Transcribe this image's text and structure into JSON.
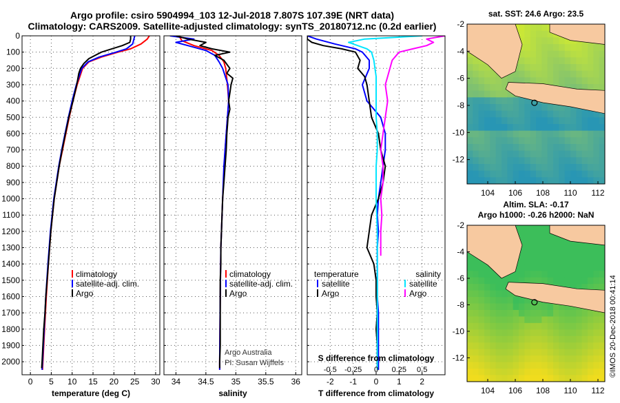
{
  "title_line1": "Argo profile: csiro 5904994_103 12-Jul-2018 7.807S 107.39E (NRT data)",
  "title_line2": "Climatology: CARS2009. Satellite-adjusted climatology: synTS_20180712.nc (0.2d earlier)",
  "credit": "©IMOS 20-Dec-2018 00:41:14",
  "colors": {
    "argo": "#000000",
    "clim": "#ff0000",
    "sat": "#0000ff",
    "sat_sal": "#00e5ff",
    "argo_sal": "#ff00ff",
    "land": "#f7c9a0"
  },
  "chart_data": [
    {
      "type": "line",
      "xlabel": "temperature (deg C)",
      "ylabel": "",
      "xlim": [
        -2,
        31
      ],
      "ylim": [
        2080,
        0
      ],
      "x_ticks": [
        0,
        5,
        10,
        15,
        20,
        25,
        30
      ],
      "y_ticks": [
        0,
        100,
        200,
        300,
        400,
        500,
        600,
        700,
        800,
        900,
        1000,
        1100,
        1200,
        1300,
        1400,
        1500,
        1600,
        1700,
        1800,
        1900,
        2000
      ],
      "legend": {
        "position": "bottom-center",
        "labels": [
          "climatology",
          "satellite-adj. clim.",
          "Argo"
        ]
      },
      "series": [
        {
          "name": "climatology",
          "color": "#ff0000",
          "depth": [
            0,
            20,
            50,
            80,
            100,
            130,
            160,
            200,
            300,
            400,
            500,
            600,
            700,
            800,
            900,
            1000,
            1200,
            1400,
            1600,
            1800,
            2000,
            2050
          ],
          "values": [
            28.5,
            28.0,
            26.5,
            24.0,
            21.0,
            17.0,
            14.0,
            12.5,
            11.2,
            10.2,
            9.3,
            8.5,
            7.7,
            6.9,
            6.3,
            5.7,
            4.9,
            4.3,
            3.8,
            3.4,
            3.0,
            2.9
          ]
        },
        {
          "name": "satellite-adj. clim.",
          "color": "#0000ff",
          "depth": [
            0,
            20,
            50,
            80,
            100,
            130,
            160,
            200,
            300,
            400,
            500,
            600,
            700,
            800,
            900,
            1000,
            1200,
            1400,
            1600,
            1800,
            2000,
            2050
          ],
          "values": [
            25.0,
            24.8,
            24.5,
            23.0,
            20.5,
            16.5,
            13.8,
            12.3,
            11.0,
            10.0,
            9.1,
            8.3,
            7.5,
            6.8,
            6.2,
            5.6,
            4.8,
            4.2,
            3.7,
            3.3,
            2.9,
            2.8
          ]
        },
        {
          "name": "Argo",
          "color": "#000000",
          "depth": [
            0,
            20,
            40,
            60,
            80,
            100,
            120,
            140,
            170,
            200,
            230,
            300,
            400,
            500,
            600,
            700,
            800,
            900,
            1000,
            1100,
            1200,
            1300,
            1400,
            1500,
            1600,
            1700,
            1800,
            1900,
            2000,
            2040
          ],
          "values": [
            24.0,
            24.0,
            23.8,
            22.0,
            19.5,
            17.0,
            15.5,
            14.0,
            12.8,
            12.0,
            11.6,
            11.1,
            10.2,
            9.2,
            8.4,
            7.6,
            6.9,
            6.3,
            5.7,
            5.3,
            4.9,
            4.6,
            4.3,
            4.0,
            3.7,
            3.5,
            3.2,
            3.0,
            2.8,
            2.7
          ]
        }
      ]
    },
    {
      "type": "line",
      "xlabel": "salinity",
      "ylabel": "",
      "xlim": [
        33.8,
        36.1
      ],
      "ylim": [
        2080,
        0
      ],
      "x_ticks": [
        34,
        34.5,
        35,
        35.5,
        36
      ],
      "legend": {
        "position": "bottom-right",
        "labels": [
          "climatology",
          "satellite-adj. clim.",
          "Argo"
        ]
      },
      "annotation": [
        "Argo Australia",
        "PI: Susan Wijffels"
      ],
      "series": [
        {
          "name": "climatology",
          "color": "#ff0000",
          "depth": [
            0,
            30,
            60,
            90,
            120,
            160,
            200,
            300,
            400,
            500,
            700,
            1000,
            1300,
            1600,
            2000,
            2050
          ],
          "values": [
            34.05,
            34.1,
            34.3,
            34.6,
            34.72,
            34.8,
            34.83,
            34.86,
            34.88,
            34.86,
            34.82,
            34.78,
            34.75,
            34.74,
            34.73,
            34.73
          ]
        },
        {
          "name": "satellite-adj. clim.",
          "color": "#0000ff",
          "depth": [
            0,
            20,
            40,
            60,
            90,
            120,
            160,
            200,
            300,
            400,
            500,
            600,
            700,
            800,
            1000,
            1300,
            1600,
            2000,
            2050
          ],
          "values": [
            33.9,
            34.3,
            34.0,
            34.2,
            34.5,
            34.65,
            34.72,
            34.78,
            34.87,
            34.88,
            34.86,
            34.84,
            34.82,
            34.8,
            34.78,
            34.75,
            34.74,
            34.73,
            34.73
          ]
        },
        {
          "name": "Argo",
          "color": "#000000",
          "depth": [
            0,
            20,
            40,
            60,
            80,
            100,
            120,
            150,
            200,
            230,
            260,
            300,
            350,
            400,
            450,
            500,
            550,
            600,
            700,
            800,
            900,
            1000,
            1100,
            1200,
            1300,
            1400,
            1500,
            1600,
            1700,
            1800,
            1900,
            2000,
            2040
          ],
          "values": [
            34.0,
            34.2,
            34.5,
            34.4,
            34.6,
            34.9,
            34.65,
            34.8,
            34.9,
            34.85,
            34.95,
            34.92,
            34.9,
            34.88,
            34.9,
            34.87,
            34.86,
            34.85,
            34.84,
            34.82,
            34.8,
            34.78,
            34.77,
            34.76,
            34.75,
            34.75,
            34.74,
            34.74,
            34.74,
            34.74,
            34.74,
            34.73,
            34.73
          ]
        }
      ]
    },
    {
      "type": "line",
      "xlabel": "T difference from climatology",
      "xlabel2": "S difference from climatology",
      "xlim": [
        -3,
        3
      ],
      "ylim": [
        2080,
        0
      ],
      "x_ticks": [
        -2,
        -1,
        0,
        1,
        2
      ],
      "x2_ticks": [
        -0.5,
        -0.25,
        0,
        0.25,
        0.5
      ],
      "x2_tick_labels": [
        "-0.5",
        "-0.25",
        "0",
        "0.25",
        "0.5"
      ],
      "legend": {
        "position": "bottom",
        "groups": [
          {
            "title": "temperature",
            "labels": [
              "satellite",
              "Argo"
            ]
          },
          {
            "title": "salinity",
            "labels": [
              "satellite",
              "Argo"
            ]
          }
        ]
      },
      "series": [
        {
          "name": "T satellite",
          "color": "#0000ff",
          "depth": [
            0,
            20,
            50,
            80,
            100,
            150,
            200,
            300,
            400,
            500,
            600,
            700,
            800,
            900,
            1000,
            1100,
            1200,
            1300,
            1400,
            1500,
            1600,
            1700,
            1800,
            1900,
            2000,
            2050
          ],
          "values": [
            -3.0,
            -2.6,
            -1.8,
            -0.9,
            -0.6,
            -0.3,
            -0.3,
            -0.6,
            -0.4,
            0.2,
            0.4,
            0.4,
            0.3,
            0.2,
            0.1,
            0.05,
            0.1,
            0.05,
            0.05,
            0.05,
            0.05,
            0.1,
            0.1,
            0.1,
            0.1,
            0.1
          ]
        },
        {
          "name": "T Argo",
          "color": "#000000",
          "depth": [
            0,
            20,
            40,
            60,
            80,
            100,
            150,
            200,
            250,
            300,
            400,
            500,
            600,
            700,
            800,
            900,
            1000,
            1100,
            1200,
            1300,
            1400,
            1500,
            1600,
            1700,
            1800,
            1900,
            2000,
            2040
          ],
          "values": [
            -3.0,
            -3.0,
            -2.8,
            -2.3,
            -1.5,
            -0.9,
            -0.7,
            -0.8,
            -0.5,
            -0.4,
            -0.3,
            -0.2,
            0.1,
            0.2,
            0.4,
            0.3,
            0.1,
            -0.2,
            -0.3,
            -0.4,
            -0.1,
            0.0,
            0.0,
            0.05,
            0.0,
            0.05,
            0.05,
            0.05
          ]
        },
        {
          "name": "S satellite",
          "color": "#00e5ff",
          "depth": [
            0,
            20,
            40,
            60,
            80,
            100,
            150,
            200,
            250,
            300,
            400,
            500,
            600,
            700,
            800,
            900,
            1000,
            1200,
            1400,
            1600,
            1800,
            2000,
            2050
          ],
          "values": [
            2.0,
            -0.5,
            -1.2,
            -0.8,
            -0.4,
            -0.2,
            -0.1,
            -0.05,
            0.0,
            0.0,
            0.0,
            0.0,
            0.05,
            0.05,
            0.0,
            0.0,
            0.0,
            0.05,
            0.05,
            0.05,
            0.05,
            0.05,
            0.05
          ]
        },
        {
          "name": "S Argo",
          "color": "#ff00ff",
          "depth": [
            0,
            20,
            40,
            60,
            80,
            100,
            150,
            200,
            250,
            300,
            400,
            500,
            600,
            700,
            800,
            900,
            1000,
            1100,
            1200,
            1300,
            1350
          ],
          "values": [
            3.0,
            2.2,
            2.5,
            2.2,
            1.6,
            1.0,
            0.7,
            0.6,
            0.5,
            0.4,
            0.5,
            0.4,
            0.3,
            0.2,
            0.3,
            0.3,
            0.2,
            0.25,
            0.2,
            0.2,
            0.2
          ]
        }
      ]
    }
  ],
  "maps": [
    {
      "title": "sat. SST: 24.6 Argo: 23.5",
      "title_line2": "",
      "type": "heatmap",
      "xlim": [
        102.5,
        112.5
      ],
      "ylim": [
        -13.8,
        -2
      ],
      "x_ticks": [
        104,
        106,
        108,
        110,
        112
      ],
      "y_ticks": [
        -2,
        -4,
        -6,
        -8,
        -10,
        -12
      ],
      "float_location": {
        "lon": 107.39,
        "lat": -7.807
      }
    },
    {
      "title": "Altim. SLA: -0.17",
      "title_line2": "Argo h1000: -0.26 h2000: NaN",
      "type": "heatmap",
      "xlim": [
        102.5,
        112.5
      ],
      "ylim": [
        -13.8,
        -2
      ],
      "x_ticks": [
        104,
        106,
        108,
        110,
        112
      ],
      "y_ticks": [
        -2,
        -4,
        -6,
        -8,
        -10,
        -12
      ],
      "float_location": {
        "lon": 107.39,
        "lat": -7.807
      }
    }
  ]
}
